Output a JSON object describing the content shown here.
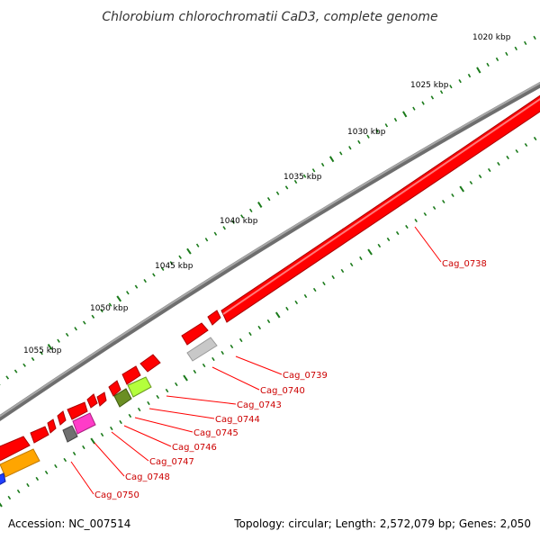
{
  "title": "Chlorobium chlorochromatii CaD3, complete genome",
  "footer": {
    "accession": "Accession: NC_007514",
    "topology": "Topology: circular; Length: 2,572,079 bp; Genes: 2,050"
  },
  "ticks": [
    "1020 kbp",
    "1025 kbp",
    "1030 kbp",
    "1035 kbp",
    "1040 kbp",
    "1045 kbp",
    "1050 kbp",
    "1055 kbp"
  ],
  "genes": [
    "Cag_0738",
    "Cag_0739",
    "Cag_0740",
    "Cag_0743",
    "Cag_0744",
    "Cag_0745",
    "Cag_0746",
    "Cag_0747",
    "Cag_0748",
    "Cag_0750"
  ],
  "colors": {
    "backbone": "#808080",
    "forward_gene": "#ff0000",
    "label": "#cc0000",
    "tick": "#1a7a1a",
    "orange_gene": "#ffa500",
    "grey_gene": "#c8c8c8",
    "lime_gene": "#b4ff3c",
    "olive_gene": "#6b8e23",
    "magenta_gene": "#ff3cc8",
    "dark_grey_gene": "#707070",
    "blue_gene": "#2040ff"
  }
}
